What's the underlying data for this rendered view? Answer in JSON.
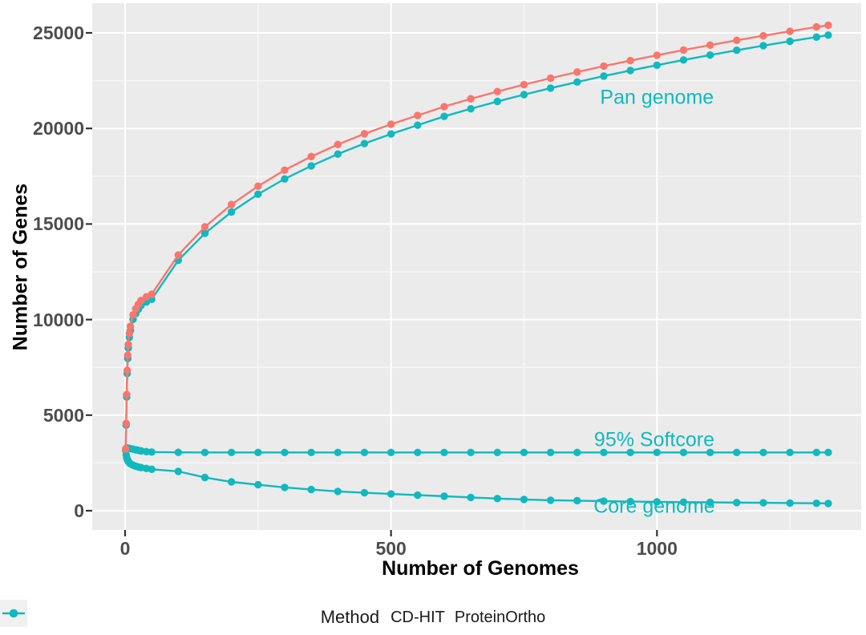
{
  "chart_data": {
    "type": "line",
    "title": "",
    "xlabel": "Number of Genomes",
    "ylabel": "Number of Genes",
    "x_ticks": [
      0,
      500,
      1000
    ],
    "x_minor_ticks": [
      250,
      750,
      1250
    ],
    "y_ticks": [
      0,
      5000,
      10000,
      15000,
      20000,
      25000
    ],
    "y_minor_ticks": [
      2500,
      7500,
      12500,
      17500,
      22500
    ],
    "xlim": [
      -62,
      1384
    ],
    "ylim": [
      -1000,
      26550
    ],
    "grid": true,
    "legend": {
      "title": "Method",
      "position": "bottom",
      "entries": [
        {
          "label": "CD-HIT",
          "color": "#f8766d"
        },
        {
          "label": "ProteinOrtho",
          "color": "#10b9be"
        }
      ]
    },
    "annotations": [
      {
        "id": "pan-genome",
        "text": "Pan genome",
        "x": 1000,
        "y": 21600,
        "color": "#10b9be"
      },
      {
        "id": "softcore",
        "text": "95% Softcore",
        "x": 995,
        "y": 3690,
        "color": "#10b9be"
      },
      {
        "id": "core-genome",
        "text": "Core genome",
        "x": 995,
        "y": 210,
        "color": "#10b9be"
      }
    ],
    "x_shared": [
      1,
      2,
      3,
      4,
      5,
      6,
      8,
      10,
      15,
      20,
      25,
      30,
      40,
      50,
      100,
      150,
      200,
      250,
      300,
      350,
      400,
      450,
      500,
      550,
      600,
      650,
      700,
      750,
      800,
      850,
      900,
      950,
      1000,
      1050,
      1100,
      1150,
      1200,
      1250,
      1300,
      1322
    ],
    "series": [
      {
        "id": "core",
        "name": "Core genome (ProteinOrtho)",
        "method": "ProteinOrtho",
        "color": "#10b9be",
        "values": [
          3200,
          2920,
          2790,
          2700,
          2630,
          2580,
          2510,
          2460,
          2380,
          2330,
          2290,
          2260,
          2210,
          2170,
          2060,
          1740,
          1510,
          1360,
          1220,
          1110,
          1010,
          940,
          880,
          815,
          760,
          695,
          635,
          590,
          550,
          525,
          500,
          480,
          465,
          450,
          440,
          425,
          415,
          400,
          390,
          380
        ]
      },
      {
        "id": "softcore",
        "name": "95% Softcore (ProteinOrtho)",
        "method": "ProteinOrtho",
        "color": "#10b9be",
        "values": [
          3200,
          3260,
          3280,
          3280,
          3275,
          3270,
          3260,
          3250,
          3220,
          3190,
          3160,
          3130,
          3090,
          3070,
          3055,
          3050,
          3050,
          3050,
          3050,
          3050,
          3050,
          3050,
          3050,
          3050,
          3050,
          3050,
          3050,
          3050,
          3050,
          3050,
          3050,
          3050,
          3050,
          3050,
          3050,
          3050,
          3050,
          3050,
          3050,
          3050
        ]
      },
      {
        "id": "pan_proteinortho",
        "name": "Pan genome (ProteinOrtho)",
        "method": "ProteinOrtho",
        "color": "#10b9be",
        "values": [
          3160,
          4480,
          5950,
          7180,
          7960,
          8510,
          9070,
          9430,
          10010,
          10310,
          10540,
          10740,
          10920,
          11060,
          13100,
          14510,
          15630,
          16560,
          17360,
          18040,
          18660,
          19210,
          19710,
          20170,
          20630,
          21030,
          21410,
          21770,
          22110,
          22430,
          22740,
          23030,
          23310,
          23580,
          23840,
          24090,
          24330,
          24560,
          24780,
          24880
        ]
      },
      {
        "id": "pan_cdhit",
        "name": "Pan genome (CD-HIT)",
        "method": "CD-HIT",
        "color": "#f8766d",
        "values": [
          3230,
          4570,
          6080,
          7340,
          8140,
          8700,
          9280,
          9650,
          10250,
          10560,
          10800,
          11000,
          11190,
          11330,
          13380,
          14850,
          16020,
          16980,
          17820,
          18530,
          19160,
          19720,
          20220,
          20680,
          21140,
          21550,
          21930,
          22290,
          22630,
          22950,
          23260,
          23550,
          23830,
          24100,
          24360,
          24610,
          24850,
          25080,
          25310,
          25400
        ]
      }
    ]
  },
  "colors": {
    "panel_bg": "#ebebeb",
    "grid_major": "#ffffff",
    "grid_minor": "#f7f7f7",
    "tick_mark": "#333333",
    "tick_label": "#4d4d4d",
    "axis_title": "#000000",
    "legend_text": "#1a1a1a",
    "legend_key_bg": "#f0f0f0"
  }
}
